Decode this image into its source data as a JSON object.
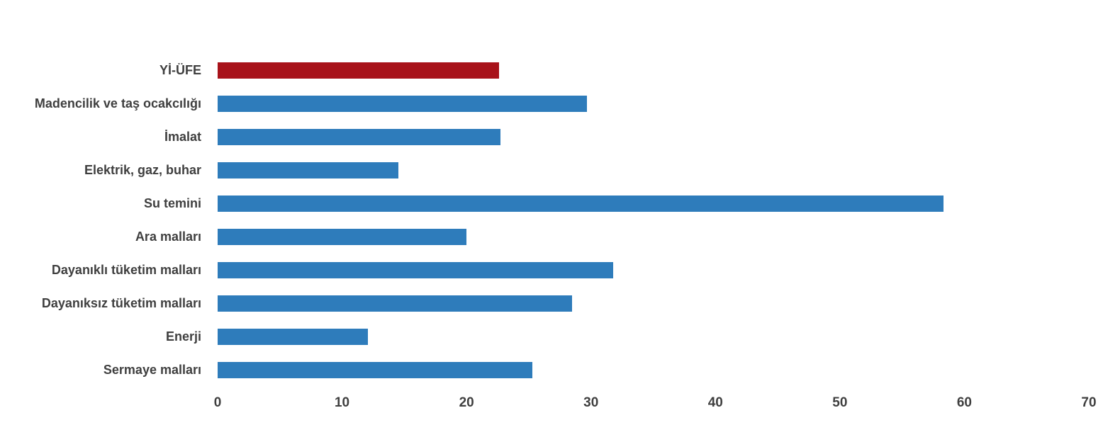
{
  "chart_data": {
    "type": "bar",
    "orientation": "horizontal",
    "title": "",
    "xlabel": "",
    "ylabel": "",
    "grid": false,
    "legend": "none",
    "xlim": [
      0,
      70
    ],
    "x_ticks": [
      "0",
      "10",
      "20",
      "30",
      "40",
      "50",
      "60",
      "70"
    ],
    "x_tick_values": [
      0,
      10,
      20,
      30,
      40,
      50,
      60,
      70
    ],
    "categories": [
      "Yİ-ÜFE",
      "Madencilik ve taş ocakcılığı",
      "İmalat",
      "Elektrik, gaz, buhar",
      "Su temini",
      "Ara malları",
      "Dayanıklı tüketim malları",
      "Dayanıksız tüketim malları",
      "Enerji",
      "Sermaye malları"
    ],
    "values": [
      22.6,
      29.7,
      22.7,
      14.5,
      58.3,
      20.0,
      31.8,
      28.5,
      12.1,
      25.3
    ],
    "bar_colors": [
      "#a8121a",
      "#2e7cbb",
      "#2e7cbb",
      "#2e7cbb",
      "#2e7cbb",
      "#2e7cbb",
      "#2e7cbb",
      "#2e7cbb",
      "#2e7cbb",
      "#2e7cbb"
    ],
    "highlight_color": "#a8121a",
    "series_color": "#2e7cbb",
    "label_color": "#3f3f3f",
    "tick_color": "#3f3f3f"
  }
}
